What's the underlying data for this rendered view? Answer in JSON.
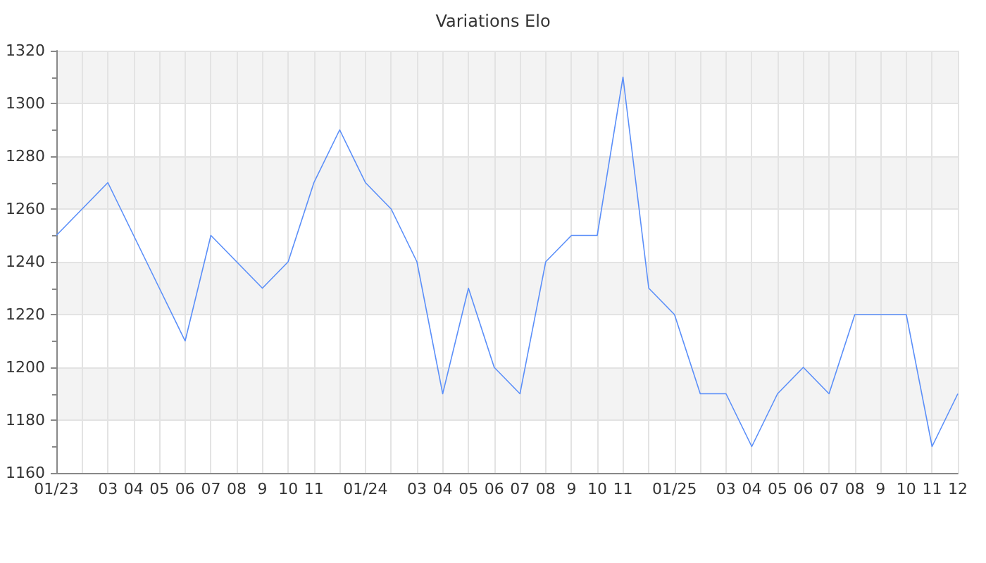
{
  "chart_data": {
    "type": "line",
    "title": "Variations Elo",
    "categories": [
      "01/23",
      null,
      "03",
      "04",
      "05",
      "06",
      "07",
      "08",
      "9",
      "10",
      "11",
      null,
      "01/24",
      null,
      "03",
      "04",
      "05",
      "06",
      "07",
      "08",
      "9",
      "10",
      "11",
      null,
      "01/25",
      null,
      "03",
      "04",
      "05",
      "06",
      "07",
      "08",
      "9",
      "10",
      "11",
      "12"
    ],
    "series": [
      {
        "color": "#5b8ff9",
        "values": [
          1250,
          1260,
          1270,
          1250,
          1230,
          1210,
          1250,
          1240,
          1230,
          1240,
          1270,
          1290,
          1270,
          1260,
          1240,
          1190,
          1230,
          1200,
          1190,
          1240,
          1250,
          1250,
          1310,
          1230,
          1220,
          1190,
          1190,
          1170,
          1190,
          1200,
          1190,
          1220,
          1220,
          1220,
          1170,
          1190
        ]
      }
    ],
    "ylim": [
      1160,
      1320
    ],
    "yticks": [
      1160,
      1180,
      1200,
      1220,
      1240,
      1260,
      1280,
      1300,
      1320
    ],
    "grid": true,
    "marker": "none",
    "line_style": "solid"
  }
}
